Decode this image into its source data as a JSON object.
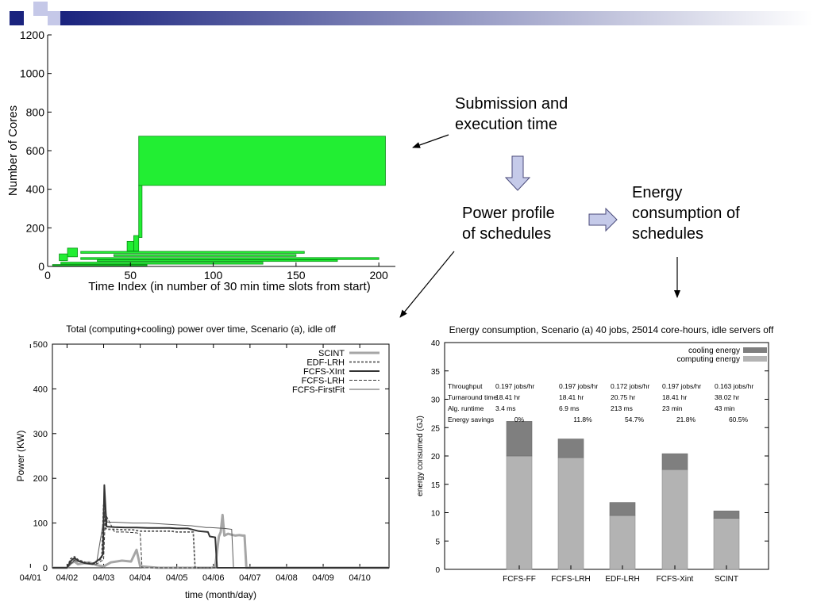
{
  "notes": {
    "submission": [
      "Submission and",
      "execution time"
    ],
    "power": [
      "Power profile",
      "of schedules"
    ],
    "energy": [
      "Energy",
      "consumption of",
      "schedules"
    ]
  },
  "colors": {
    "banner_dark": "#1a237e",
    "banner_light": "#c5c8e8",
    "gantt_fill": "#22ee33",
    "gantt_edge": "#0b8f16",
    "block_arrow_fill": "#c5cae9",
    "block_arrow_edge": "#4a4a7a",
    "cooling_bar": "#7f7f7f",
    "computing_bar": "#b3b3b3"
  },
  "chart_data": [
    {
      "type": "bar",
      "subtype": "gantt",
      "title": "",
      "xlabel": "Time Index (in number of 30 min time slots from start)",
      "ylabel": "Number of Cores",
      "xlim": [
        0,
        210
      ],
      "ylim": [
        0,
        1200
      ],
      "xticks": [
        0,
        50,
        100,
        150,
        200
      ],
      "yticks": [
        0,
        200,
        400,
        600,
        800,
        1000,
        1200
      ],
      "jobs": [
        {
          "start": 55,
          "end": 204,
          "low": 420,
          "high": 675
        },
        {
          "start": 55,
          "end": 57,
          "low": 150,
          "high": 420
        },
        {
          "start": 52,
          "end": 55,
          "low": 80,
          "high": 160
        },
        {
          "start": 48,
          "end": 52,
          "low": 80,
          "high": 130
        },
        {
          "start": 12,
          "end": 18,
          "low": 50,
          "high": 95
        },
        {
          "start": 7,
          "end": 12,
          "low": 30,
          "high": 65
        },
        {
          "start": 20,
          "end": 155,
          "low": 68,
          "high": 78
        },
        {
          "start": 40,
          "end": 150,
          "low": 52,
          "high": 62
        },
        {
          "start": 20,
          "end": 200,
          "low": 36,
          "high": 46
        },
        {
          "start": 30,
          "end": 175,
          "low": 26,
          "high": 34
        },
        {
          "start": 8,
          "end": 130,
          "low": 12,
          "high": 22
        },
        {
          "start": 3,
          "end": 60,
          "low": 4,
          "high": 10
        }
      ]
    },
    {
      "type": "line",
      "title": "Total (computing+cooling) power over time, Scenario (a), idle off",
      "xlabel": "time (month/day)",
      "ylabel": "Power (KW)",
      "categories": [
        "04/01",
        "04/02",
        "04/03",
        "04/04",
        "04/05",
        "04/06",
        "04/07",
        "04/08",
        "04/09",
        "04/10"
      ],
      "xlim": [
        0.6,
        9.8
      ],
      "ylim": [
        0,
        500
      ],
      "yticks": [
        0,
        100,
        200,
        300,
        400,
        500
      ],
      "legend": "top-right",
      "series": [
        {
          "name": "SCINT",
          "color": "#a6a6a6",
          "width": 3,
          "dash": "",
          "x": [
            0.6,
            1.0,
            1.1,
            1.2,
            1.3,
            1.6,
            1.8,
            2.0,
            2.2,
            2.5,
            2.75,
            2.9,
            3.0,
            3.5,
            4.0,
            4.5,
            4.95,
            5.05,
            5.15,
            5.2,
            5.25,
            5.3,
            5.4,
            5.5,
            5.6,
            5.7,
            5.8,
            5.85,
            5.9,
            6.0,
            6.5,
            7.0,
            7.5,
            8.0,
            8.5,
            9.0,
            9.5,
            9.8
          ],
          "y": [
            0,
            0,
            10,
            14,
            8,
            12,
            6,
            3,
            12,
            16,
            14,
            40,
            3,
            0,
            0,
            0,
            0,
            3,
            70,
            80,
            118,
            72,
            76,
            74,
            72,
            73,
            72,
            72,
            0,
            0,
            0,
            0,
            0,
            0,
            0,
            0,
            0,
            0
          ]
        },
        {
          "name": "EDF-LRH",
          "color": "#595959",
          "width": 1.8,
          "dash": "3,2",
          "x": [
            0.6,
            1.0,
            1.1,
            1.2,
            1.3,
            1.5,
            1.7,
            1.95,
            2.0,
            2.05,
            2.1,
            2.3,
            2.6,
            2.8,
            2.85,
            3.0,
            3.2,
            3.5,
            3.7,
            3.85,
            4.0,
            4.2,
            4.4,
            4.45,
            4.5,
            5.0,
            6.0,
            7.0,
            8.0,
            9.0,
            9.8
          ],
          "y": [
            0,
            0,
            20,
            25,
            18,
            12,
            10,
            20,
            140,
            88,
            86,
            86,
            85,
            85,
            84,
            82,
            82,
            82,
            82,
            82,
            80,
            80,
            80,
            80,
            0,
            0,
            0,
            0,
            0,
            0,
            0
          ]
        },
        {
          "name": "FCFS-XInt",
          "color": "#333333",
          "width": 2,
          "dash": "",
          "x": [
            0.6,
            1.0,
            1.1,
            1.2,
            1.3,
            1.5,
            1.7,
            1.9,
            1.98,
            2.02,
            2.08,
            2.3,
            2.6,
            2.9,
            3.2,
            3.5,
            3.8,
            4.0,
            4.3,
            4.6,
            4.85,
            4.9,
            5.05,
            5.1,
            5.15,
            5.5,
            6.0,
            7.0,
            8.0,
            9.0,
            9.8
          ],
          "y": [
            0,
            0,
            15,
            22,
            16,
            10,
            8,
            20,
            30,
            185,
            92,
            91,
            90,
            90,
            89,
            89,
            89,
            88,
            88,
            82,
            80,
            70,
            68,
            0,
            0,
            0,
            0,
            0,
            0,
            0,
            0
          ]
        },
        {
          "name": "FCFS-LRH",
          "color": "#333333",
          "width": 1,
          "dash": "4,2",
          "x": [
            0.6,
            1.0,
            1.2,
            1.5,
            1.8,
            2.0,
            2.05,
            2.3,
            2.6,
            2.9,
            3.0,
            3.05,
            3.5,
            4.0,
            5.0,
            6.0,
            7.0,
            8.0,
            9.0,
            9.8
          ],
          "y": [
            0,
            0,
            18,
            10,
            8,
            18,
            120,
            80,
            80,
            78,
            76,
            0,
            0,
            0,
            0,
            0,
            0,
            0,
            0,
            0
          ]
        },
        {
          "name": "FCFS-FirstFit",
          "color": "#595959",
          "width": 1,
          "dash": "",
          "x": [
            0.6,
            1.0,
            1.2,
            1.5,
            1.8,
            2.05,
            2.1,
            2.3,
            2.8,
            3.2,
            3.6,
            4.0,
            4.4,
            4.6,
            4.8,
            4.9,
            5.3,
            5.5,
            5.55,
            6.0,
            7.0,
            8.0,
            9.0,
            9.8
          ],
          "y": [
            0,
            0,
            16,
            10,
            8,
            130,
            102,
            102,
            100,
            100,
            98,
            96,
            94,
            92,
            90,
            90,
            88,
            86,
            0,
            0,
            0,
            0,
            0,
            0
          ]
        }
      ]
    },
    {
      "type": "bar",
      "stacked": true,
      "title": "Energy consumption, Scenario (a) 40 jobs, 25014 core-hours, idle servers off",
      "xlabel": "",
      "ylabel": "energy consumed (GJ)",
      "ylim": [
        0,
        40
      ],
      "yticks": [
        0,
        5,
        10,
        15,
        20,
        25,
        30,
        35,
        40
      ],
      "legend": "top-right",
      "categories": [
        "FCFS-FF",
        "FCFS-LRH",
        "EDF-LRH",
        "FCFS-Xint",
        "SCINT"
      ],
      "series": [
        {
          "name": "computing energy",
          "values": [
            20.0,
            19.7,
            9.5,
            17.6,
            9.0
          ]
        },
        {
          "name": "cooling energy",
          "values": [
            6.1,
            3.3,
            2.3,
            2.8,
            1.3
          ]
        }
      ],
      "table": {
        "rows": [
          {
            "label": "Throughput",
            "values": [
              "0.197 jobs/hr",
              "0.197 jobs/hr",
              "0.172 jobs/hr",
              "0.197 jobs/hr",
              "0.163 jobs/hr"
            ]
          },
          {
            "label": "Turnaround time",
            "values": [
              "18.41 hr",
              "18.41 hr",
              "20.75 hr",
              "18.41 hr",
              "38.02 hr"
            ]
          },
          {
            "label": "Alg. runtime",
            "values": [
              "3.4 ms",
              "6.9 ms",
              "213 ms",
              "23 min",
              "43 min"
            ]
          },
          {
            "label": "Energy savings",
            "values": [
              "0%",
              "11.8%",
              "54.7%",
              "21.8%",
              "60.5%"
            ]
          }
        ]
      }
    }
  ]
}
